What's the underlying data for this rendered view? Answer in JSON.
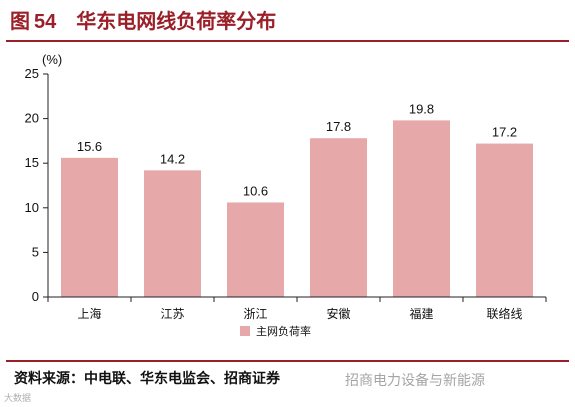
{
  "header": {
    "fig_label": "图",
    "fig_number": "54",
    "title": "华东电网线负荷率分布"
  },
  "source": "资料来源：中电联、华东电监会、招商证券",
  "watermarks": {
    "main": "招商电力设备与新能源",
    "corner": "大数据"
  },
  "colors": {
    "bar": "#e6a8a9",
    "accent": "#9a1f28"
  },
  "chart_data": {
    "type": "bar",
    "categories": [
      "上海",
      "江苏",
      "浙江",
      "安徽",
      "福建",
      "联络线"
    ],
    "series": [
      {
        "name": "主网负荷率",
        "values": [
          15.6,
          14.2,
          10.6,
          17.8,
          19.8,
          17.2
        ]
      }
    ],
    "data_labels": [
      "15.6",
      "14.2",
      "10.6",
      "17.8",
      "19.8",
      "17.2"
    ],
    "ylabel": "(%)",
    "ylim": [
      0,
      25
    ],
    "yticks": [
      "0",
      "5",
      "10",
      "15",
      "20",
      "25"
    ],
    "grid": false,
    "legend": "bottom"
  }
}
